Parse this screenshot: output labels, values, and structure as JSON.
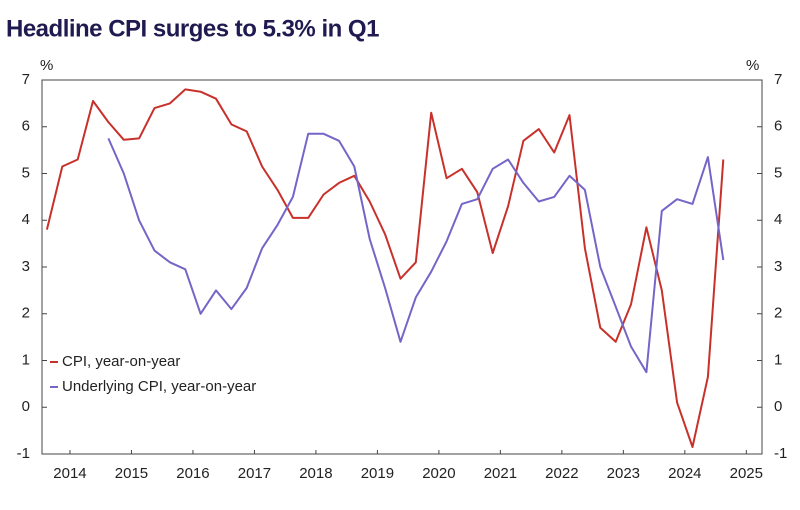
{
  "chart_data": {
    "type": "line",
    "title": "Headline CPI surges to 5.3% in Q1",
    "y_label": "%",
    "y2_label": "%",
    "x": [
      2014,
      2014.25,
      2014.5,
      2014.75,
      2015,
      2015.25,
      2015.5,
      2015.75,
      2016,
      2016.25,
      2016.5,
      2016.75,
      2017,
      2017.25,
      2017.5,
      2017.75,
      2018,
      2018.25,
      2018.5,
      2018.75,
      2019,
      2019.25,
      2019.5,
      2019.75,
      2020,
      2020.25,
      2020.5,
      2020.75,
      2021,
      2021.25,
      2021.5,
      2021.75,
      2022,
      2022.25,
      2022.5,
      2022.75,
      2023,
      2023.25,
      2023.5,
      2023.75,
      2024,
      2024.25,
      2024.5,
      2024.75,
      2025
    ],
    "series": [
      {
        "name": "CPI, year-on-year",
        "color": "#c8312b",
        "values": [
          3.8,
          5.15,
          5.3,
          6.55,
          6.1,
          5.72,
          5.75,
          6.4,
          6.5,
          6.8,
          6.75,
          6.6,
          6.05,
          5.9,
          5.15,
          4.65,
          4.05,
          4.05,
          4.55,
          4.8,
          4.95,
          4.4,
          3.7,
          2.75,
          3.1,
          6.3,
          4.9,
          5.1,
          4.6,
          3.3,
          4.3,
          5.7,
          5.95,
          5.45,
          6.25,
          3.4,
          1.7,
          1.4,
          2.2,
          3.85,
          2.5,
          0.1,
          -0.85,
          0.65,
          5.3
        ]
      },
      {
        "name": "Underlying CPI, year-on-year",
        "color": "#7366c8",
        "values": [
          null,
          null,
          null,
          null,
          5.75,
          5.0,
          4.0,
          3.35,
          3.1,
          2.95,
          2.0,
          2.5,
          2.1,
          2.55,
          3.4,
          3.9,
          4.5,
          5.85,
          5.85,
          5.7,
          5.15,
          3.6,
          2.55,
          1.4,
          2.35,
          2.9,
          3.55,
          4.35,
          4.45,
          5.1,
          5.3,
          4.8,
          4.4,
          4.5,
          4.95,
          4.65,
          3.0,
          2.15,
          1.3,
          0.75,
          4.2,
          4.45,
          4.35,
          5.35,
          3.15
        ]
      }
    ],
    "xlim": [
      2013.92,
      2025.63
    ],
    "xticks": [
      {
        "value": 2014.375,
        "label": "2014"
      },
      {
        "value": 2015.375,
        "label": "2015"
      },
      {
        "value": 2016.375,
        "label": "2016"
      },
      {
        "value": 2017.375,
        "label": "2017"
      },
      {
        "value": 2018.375,
        "label": "2018"
      },
      {
        "value": 2019.375,
        "label": "2019"
      },
      {
        "value": 2020.375,
        "label": "2020"
      },
      {
        "value": 2021.375,
        "label": "2021"
      },
      {
        "value": 2022.375,
        "label": "2022"
      },
      {
        "value": 2023.375,
        "label": "2023"
      },
      {
        "value": 2024.375,
        "label": "2024"
      },
      {
        "value": 2025.375,
        "label": "2025"
      }
    ],
    "ylim": [
      -1,
      7
    ],
    "yticks": [
      -1,
      0,
      1,
      2,
      3,
      4,
      5,
      6,
      7
    ],
    "y2lim": [
      -1,
      7
    ],
    "y2ticks": [
      -1,
      0,
      1,
      2,
      3,
      4,
      5,
      6,
      7
    ],
    "legend": "lower left"
  }
}
